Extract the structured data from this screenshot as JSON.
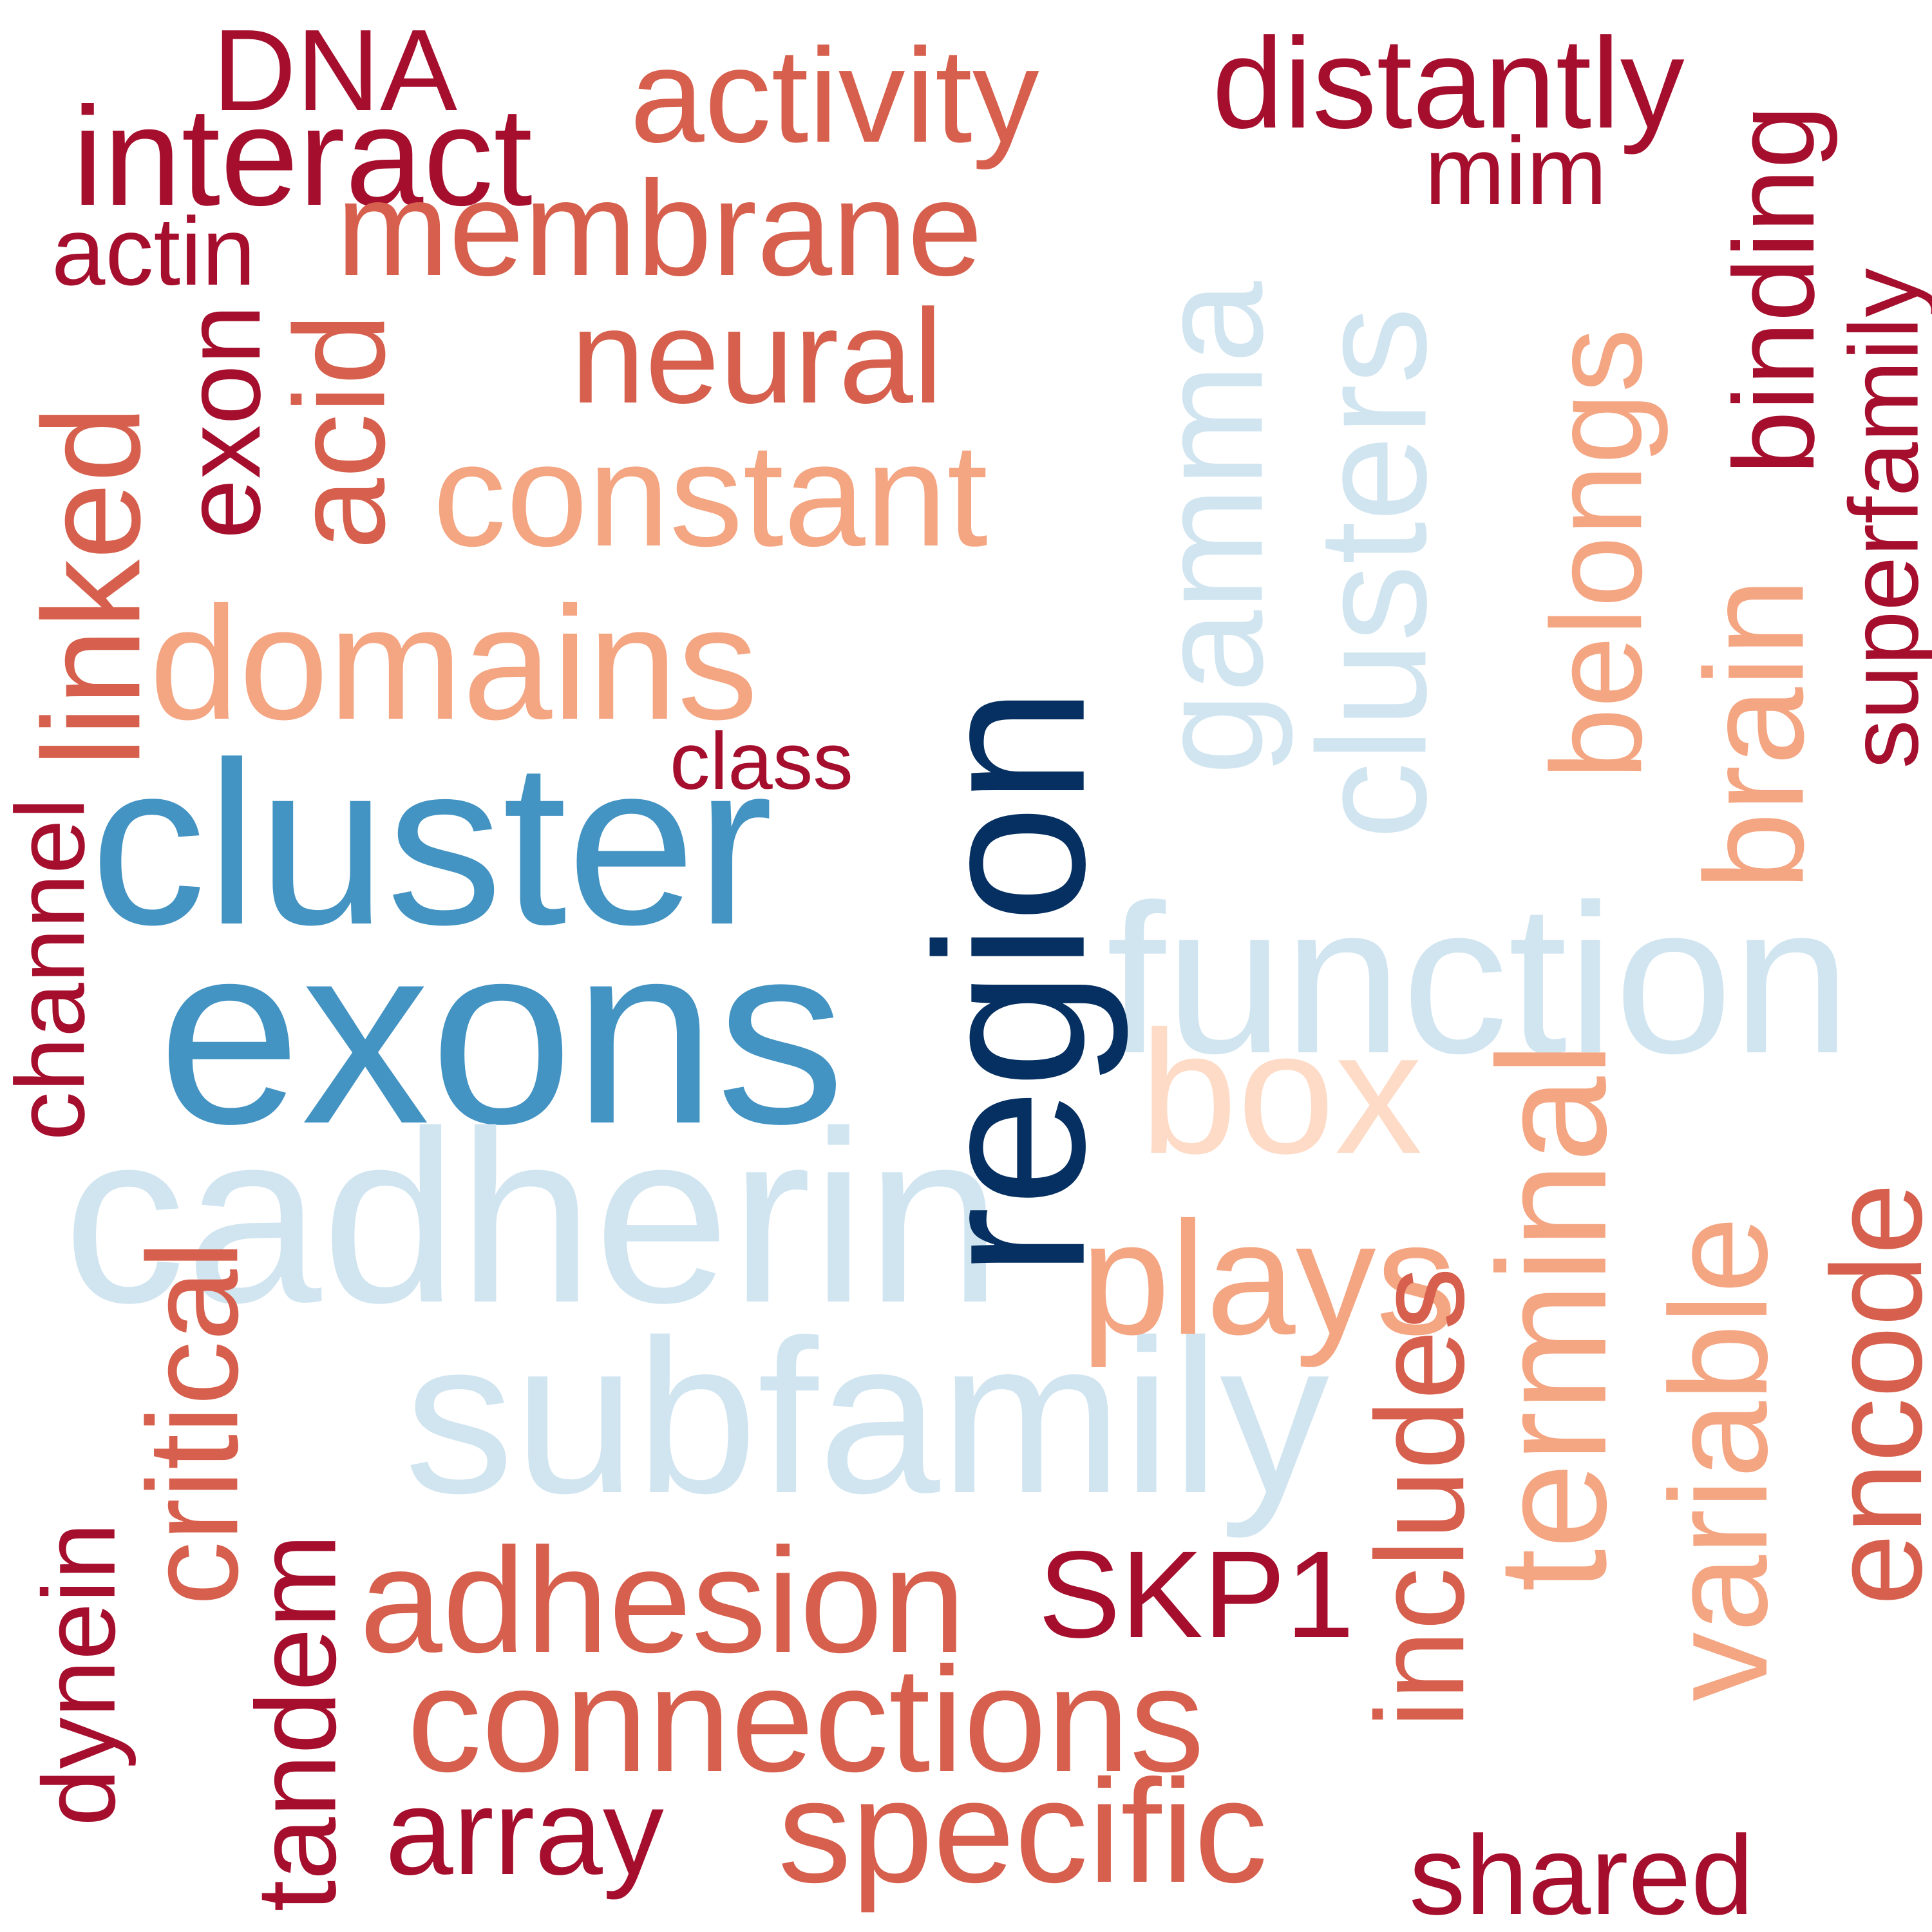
{
  "palette": {
    "dark_red": "#a50f2d",
    "red": "#d6604d",
    "salmon": "#f4a582",
    "peach": "#fddbc7",
    "pale_blue": "#d1e5f0",
    "blue": "#4393c3",
    "navy": "#053061"
  },
  "words": [
    {
      "text": "DNA",
      "color": "#a50f2d"
    },
    {
      "text": "interact",
      "color": "#a50f2d"
    },
    {
      "text": "actin",
      "color": "#a50f2d"
    },
    {
      "text": "activity",
      "color": "#d6604d"
    },
    {
      "text": "membrane",
      "color": "#d6604d"
    },
    {
      "text": "neural",
      "color": "#d6604d"
    },
    {
      "text": "constant",
      "color": "#f4a582"
    },
    {
      "text": "domains",
      "color": "#f4a582"
    },
    {
      "text": "class",
      "color": "#a50f2d"
    },
    {
      "text": "cluster",
      "color": "#4393c3"
    },
    {
      "text": "exons",
      "color": "#4393c3"
    },
    {
      "text": "cadherin",
      "color": "#d1e5f0"
    },
    {
      "text": "subfamily",
      "color": "#d1e5f0"
    },
    {
      "text": "adhesion",
      "color": "#d6604d"
    },
    {
      "text": "SKP1",
      "color": "#a50f2d"
    },
    {
      "text": "connections",
      "color": "#d6604d"
    },
    {
      "text": "array",
      "color": "#a50f2d"
    },
    {
      "text": "specific",
      "color": "#d6604d"
    },
    {
      "text": "distantly",
      "color": "#a50f2d"
    },
    {
      "text": "mim",
      "color": "#a50f2d"
    },
    {
      "text": "function",
      "color": "#d1e5f0"
    },
    {
      "text": "box",
      "color": "#fddbc7"
    },
    {
      "text": "plays",
      "color": "#f4a582"
    },
    {
      "text": "shared",
      "color": "#a50f2d"
    },
    {
      "text": "linked",
      "color": "#d6604d"
    },
    {
      "text": "exon",
      "color": "#a50f2d"
    },
    {
      "text": "acid",
      "color": "#d6604d"
    },
    {
      "text": "channel",
      "color": "#a50f2d"
    },
    {
      "text": "critical",
      "color": "#d6604d"
    },
    {
      "text": "dynein",
      "color": "#a50f2d"
    },
    {
      "text": "tandem",
      "color": "#a50f2d"
    },
    {
      "text": "region",
      "color": "#053061"
    },
    {
      "text": "gamma",
      "color": "#d1e5f0"
    },
    {
      "text": "clusters",
      "color": "#d1e5f0"
    },
    {
      "text": "belongs",
      "color": "#f4a582"
    },
    {
      "text": "terminal",
      "color": "#f4a582"
    },
    {
      "text": "includes",
      "color": "#d6604d"
    },
    {
      "text": "binding",
      "color": "#a50f2d"
    },
    {
      "text": "brain",
      "color": "#f4a582"
    },
    {
      "text": "superfamily",
      "color": "#a50f2d"
    },
    {
      "text": "variable",
      "color": "#f4a582"
    },
    {
      "text": "encode",
      "color": "#d6604d"
    }
  ]
}
